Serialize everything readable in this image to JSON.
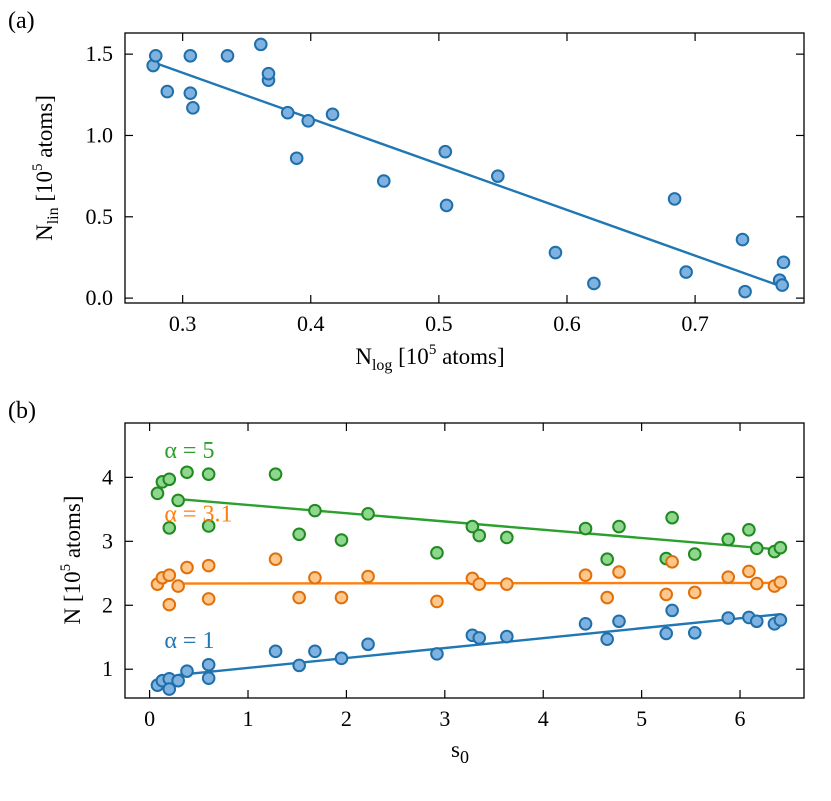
{
  "chart_data": [
    {
      "panel": "(a)",
      "type": "scatter",
      "xlabel": "N",
      "xlabel_sub": "log",
      "xlabel_rest": " [10",
      "xlabel_sup": "5",
      "xlabel_end": " atoms]",
      "ylabel": "N",
      "ylabel_sub": "lin",
      "ylabel_rest": " [10",
      "ylabel_sup": "5",
      "ylabel_end": " atoms]",
      "xlim": [
        0.255,
        0.785
      ],
      "ylim": [
        -0.03,
        1.63
      ],
      "xticks": [
        "0.3",
        "0.4",
        "0.5",
        "0.6",
        "0.7"
      ],
      "yticks": [
        "0.0",
        "0.5",
        "1.0",
        "1.5"
      ],
      "colors": {
        "marker": "#7fb2e0",
        "edge": "#1f6faa",
        "line": "#1f77b4"
      },
      "points": [
        [
          0.277,
          1.43
        ],
        [
          0.279,
          1.49
        ],
        [
          0.288,
          1.27
        ],
        [
          0.306,
          1.49
        ],
        [
          0.306,
          1.26
        ],
        [
          0.308,
          1.17
        ],
        [
          0.335,
          1.49
        ],
        [
          0.361,
          1.56
        ],
        [
          0.367,
          1.34
        ],
        [
          0.367,
          1.38
        ],
        [
          0.382,
          1.14
        ],
        [
          0.389,
          0.86
        ],
        [
          0.398,
          1.09
        ],
        [
          0.417,
          1.13
        ],
        [
          0.457,
          0.72
        ],
        [
          0.505,
          0.9
        ],
        [
          0.506,
          0.57
        ],
        [
          0.546,
          0.75
        ],
        [
          0.591,
          0.28
        ],
        [
          0.621,
          0.09
        ],
        [
          0.684,
          0.61
        ],
        [
          0.693,
          0.16
        ],
        [
          0.737,
          0.36
        ],
        [
          0.739,
          0.04
        ],
        [
          0.766,
          0.11
        ],
        [
          0.768,
          0.08
        ],
        [
          0.769,
          0.22
        ]
      ],
      "fit": [
        [
          0.277,
          1.45
        ],
        [
          0.768,
          0.07
        ]
      ]
    },
    {
      "panel": "(b)",
      "type": "scatter",
      "xlabel": "s",
      "xlabel_sub": "0",
      "ylabel": "N [10",
      "ylabel_sup": "5",
      "ylabel_end": " atoms]",
      "xlim": [
        -0.25,
        6.65
      ],
      "ylim": [
        0.55,
        4.85
      ],
      "xticks": [
        "0",
        "1",
        "2",
        "3",
        "4",
        "5",
        "6"
      ],
      "yticks": [
        "1",
        "2",
        "3",
        "4"
      ],
      "series": [
        {
          "name": "α = 5",
          "color": "#2ca02c",
          "fill": "#8fd68f",
          "edge": "#1f8a1f",
          "label_pos": [
            0.15,
            4.3
          ],
          "points": [
            [
              0.08,
              3.75
            ],
            [
              0.13,
              3.93
            ],
            [
              0.2,
              3.97
            ],
            [
              0.2,
              3.21
            ],
            [
              0.29,
              3.64
            ],
            [
              0.38,
              4.08
            ],
            [
              0.6,
              4.05
            ],
            [
              0.6,
              3.24
            ],
            [
              1.28,
              4.05
            ],
            [
              1.52,
              3.11
            ],
            [
              1.68,
              3.48
            ],
            [
              1.95,
              3.02
            ],
            [
              2.22,
              3.43
            ],
            [
              2.92,
              2.82
            ],
            [
              3.28,
              3.23
            ],
            [
              3.35,
              3.09
            ],
            [
              3.63,
              3.06
            ],
            [
              4.43,
              3.2
            ],
            [
              4.65,
              2.72
            ],
            [
              4.77,
              3.23
            ],
            [
              5.25,
              2.73
            ],
            [
              5.31,
              3.37
            ],
            [
              5.54,
              2.8
            ],
            [
              5.88,
              3.03
            ],
            [
              6.09,
              3.18
            ],
            [
              6.17,
              2.89
            ],
            [
              6.35,
              2.84
            ],
            [
              6.41,
              2.9
            ]
          ],
          "fit": [
            [
              0.29,
              3.66
            ],
            [
              6.41,
              2.87
            ]
          ]
        },
        {
          "name": "α = 3.1",
          "color": "#ff7f0e",
          "fill": "#ffc78c",
          "edge": "#e0700a",
          "label_pos": [
            0.15,
            3.31
          ],
          "points": [
            [
              0.08,
              2.33
            ],
            [
              0.13,
              2.43
            ],
            [
              0.2,
              2.47
            ],
            [
              0.2,
              2.01
            ],
            [
              0.29,
              2.3
            ],
            [
              0.38,
              2.59
            ],
            [
              0.6,
              2.62
            ],
            [
              0.6,
              2.1
            ],
            [
              1.28,
              2.72
            ],
            [
              1.52,
              2.12
            ],
            [
              1.68,
              2.43
            ],
            [
              1.95,
              2.12
            ],
            [
              2.22,
              2.45
            ],
            [
              2.92,
              2.06
            ],
            [
              3.28,
              2.42
            ],
            [
              3.35,
              2.33
            ],
            [
              3.63,
              2.33
            ],
            [
              4.43,
              2.47
            ],
            [
              4.65,
              2.12
            ],
            [
              4.77,
              2.52
            ],
            [
              5.25,
              2.17
            ],
            [
              5.31,
              2.68
            ],
            [
              5.54,
              2.2
            ],
            [
              5.88,
              2.44
            ],
            [
              6.09,
              2.53
            ],
            [
              6.17,
              2.34
            ],
            [
              6.35,
              2.3
            ],
            [
              6.41,
              2.36
            ]
          ],
          "fit": [
            [
              0.29,
              2.34
            ],
            [
              6.41,
              2.35
            ]
          ]
        },
        {
          "name": "α = 1",
          "color": "#1f77b4",
          "fill": "#7fb2e0",
          "edge": "#1f6faa",
          "label_pos": [
            0.15,
            1.33
          ],
          "points": [
            [
              0.08,
              0.75
            ],
            [
              0.13,
              0.82
            ],
            [
              0.2,
              0.85
            ],
            [
              0.2,
              0.69
            ],
            [
              0.29,
              0.82
            ],
            [
              0.38,
              0.97
            ],
            [
              0.6,
              1.07
            ],
            [
              0.6,
              0.86
            ],
            [
              1.28,
              1.28
            ],
            [
              1.52,
              1.06
            ],
            [
              1.68,
              1.28
            ],
            [
              1.95,
              1.17
            ],
            [
              2.22,
              1.39
            ],
            [
              2.92,
              1.24
            ],
            [
              3.28,
              1.53
            ],
            [
              3.35,
              1.49
            ],
            [
              3.63,
              1.51
            ],
            [
              4.43,
              1.71
            ],
            [
              4.65,
              1.47
            ],
            [
              4.77,
              1.75
            ],
            [
              5.25,
              1.56
            ],
            [
              5.31,
              1.92
            ],
            [
              5.54,
              1.57
            ],
            [
              5.88,
              1.8
            ],
            [
              6.09,
              1.81
            ],
            [
              6.17,
              1.75
            ],
            [
              6.35,
              1.71
            ],
            [
              6.41,
              1.77
            ]
          ],
          "fit": [
            [
              0.29,
              0.91
            ],
            [
              6.41,
              1.86
            ]
          ]
        }
      ]
    }
  ]
}
